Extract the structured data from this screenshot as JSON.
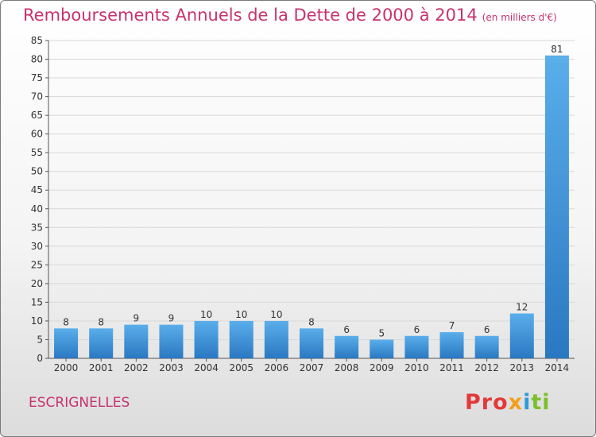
{
  "chart_data": {
    "type": "bar",
    "title": "Remboursements Annuels de la Dette de 2000 à 2014",
    "unit_note": "(en milliers d'€)",
    "categories": [
      "2000",
      "2001",
      "2002",
      "2003",
      "2004",
      "2005",
      "2006",
      "2007",
      "2008",
      "2009",
      "2010",
      "2011",
      "2012",
      "2013",
      "2014"
    ],
    "values": [
      8,
      8,
      9,
      9,
      10,
      10,
      10,
      8,
      6,
      5,
      6,
      7,
      6,
      12,
      81
    ],
    "ylim": [
      0,
      85
    ],
    "yticks": [
      "0",
      "5",
      "10",
      "15",
      "20",
      "25",
      "30",
      "35",
      "40",
      "45",
      "50",
      "55",
      "60",
      "65",
      "70",
      "75",
      "80",
      "85"
    ],
    "grid": true,
    "bar_color": "#3a8fd6"
  },
  "footer": {
    "commune": "ESCRIGNELLES",
    "logo_parts": [
      "Pro",
      "x",
      "i",
      "ti"
    ]
  }
}
